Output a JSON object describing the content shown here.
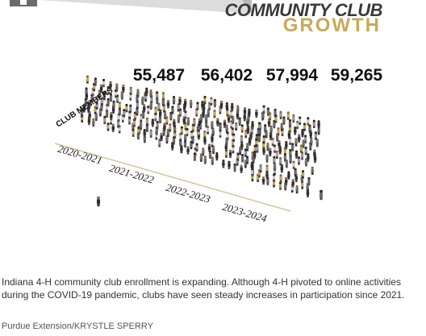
{
  "header": {
    "title_line1": "COMMUNITY CLUB",
    "title_line2": "GROWTH"
  },
  "chart_data": {
    "type": "bar",
    "ylabel": "CLUB MEMBERS",
    "categories": [
      "2020-2021",
      "2021-2022",
      "2022-2023",
      "2023-2024"
    ],
    "series": [
      {
        "values": [
          55487,
          56402,
          57994,
          59265
        ]
      }
    ],
    "value_labels": [
      "55,487",
      "56,402",
      "57,994",
      "59,265"
    ]
  },
  "colors": {
    "accent_gold": "#c9a95a",
    "figure_gray": "#6e6e6e",
    "figure_dark": "#2e2e2e",
    "figure_light": "#cfcfcf",
    "floor_line": "#d6c690"
  },
  "caption": "Indiana 4-H community club enrollment is expanding. Although 4-H pivoted to online activities during the COVID-19 pandemic, clubs have seen steady increases in participation since 2021.",
  "credit": "Purdue Extension/KRYSTLE SPERRY"
}
